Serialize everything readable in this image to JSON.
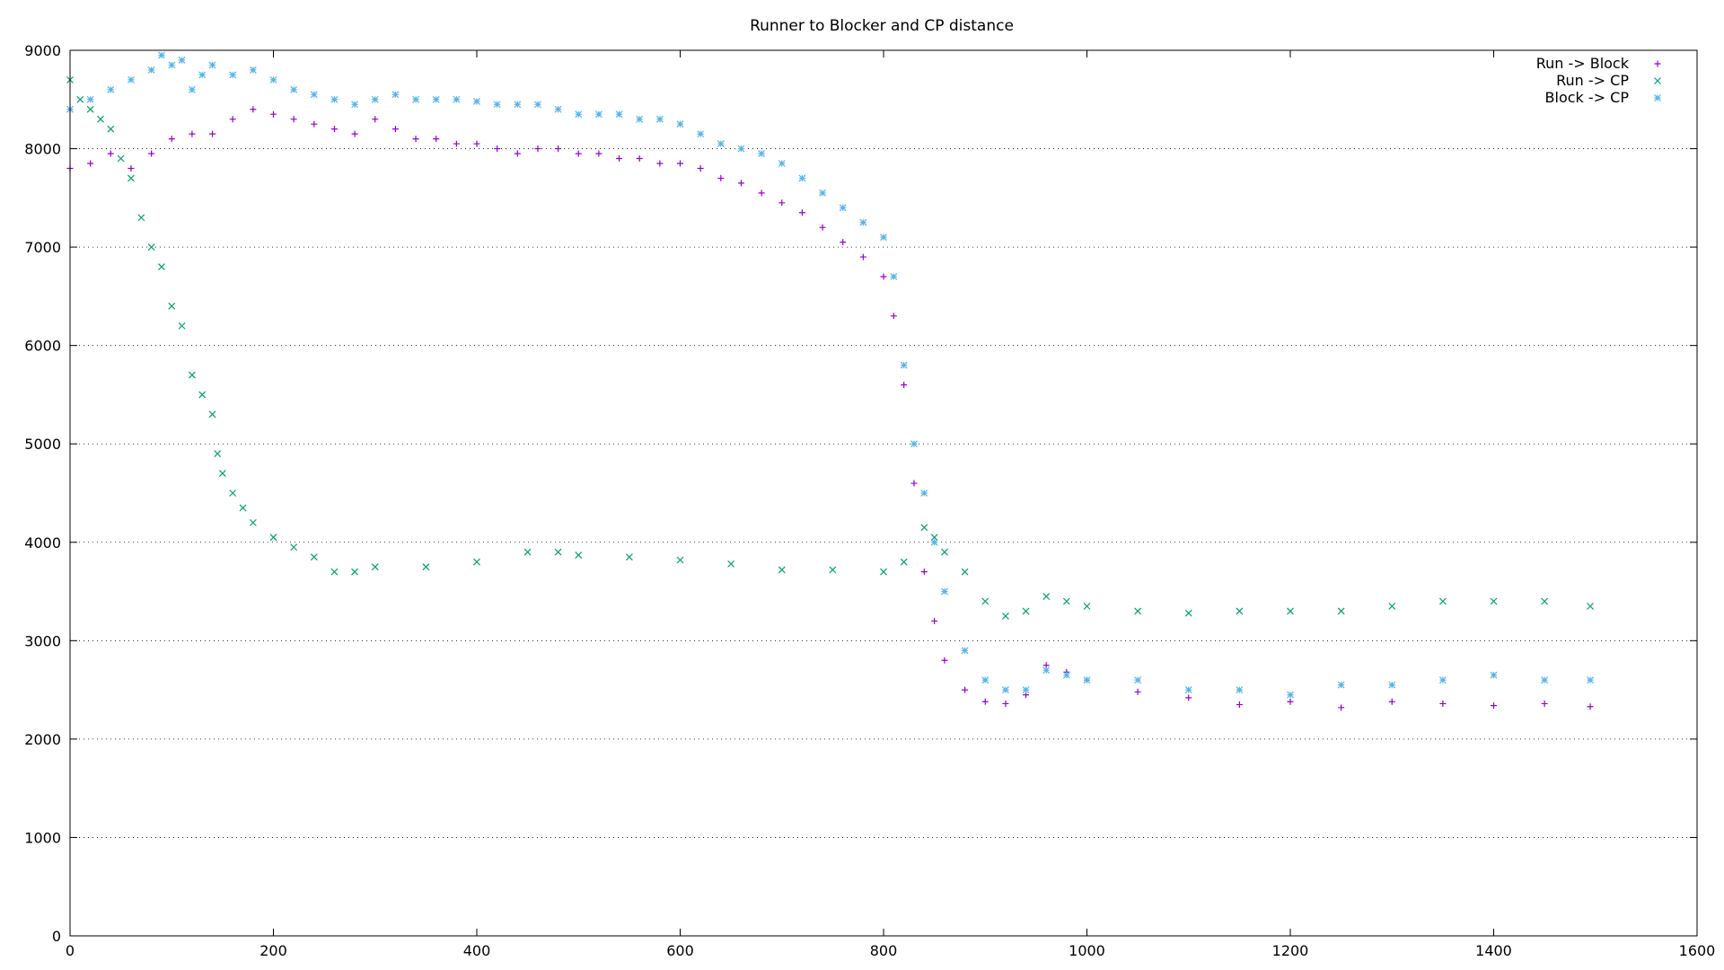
{
  "chart_data": {
    "type": "scatter",
    "title": "Runner to Blocker and CP distance",
    "xlabel": "",
    "ylabel": "",
    "xlim": [
      0,
      1600
    ],
    "ylim": [
      0,
      9000
    ],
    "xticks": [
      0,
      200,
      400,
      600,
      800,
      1000,
      1200,
      1400,
      1600
    ],
    "yticks": [
      0,
      1000,
      2000,
      3000,
      4000,
      5000,
      6000,
      7000,
      8000,
      9000
    ],
    "grid": "horizontal dotted",
    "legend_position": "top-right",
    "series": [
      {
        "name": "Run -> Block",
        "legend_label": "Run -> Block",
        "marker": "+",
        "color": "#9400d3",
        "x": [
          0,
          20,
          40,
          60,
          80,
          100,
          120,
          140,
          160,
          180,
          200,
          220,
          240,
          260,
          280,
          300,
          320,
          340,
          360,
          380,
          400,
          420,
          440,
          460,
          480,
          500,
          520,
          540,
          560,
          580,
          600,
          620,
          640,
          660,
          680,
          700,
          720,
          740,
          760,
          780,
          800,
          810,
          820,
          830,
          840,
          850,
          860,
          880,
          900,
          920,
          940,
          960,
          980,
          1000,
          1050,
          1100,
          1150,
          1200,
          1250,
          1300,
          1350,
          1400,
          1450,
          1495
        ],
        "y": [
          7800,
          7850,
          7950,
          7800,
          7950,
          8100,
          8150,
          8150,
          8300,
          8400,
          8350,
          8300,
          8250,
          8200,
          8150,
          8300,
          8200,
          8100,
          8100,
          8050,
          8050,
          8000,
          7950,
          8000,
          8000,
          7950,
          7950,
          7900,
          7900,
          7850,
          7850,
          7800,
          7700,
          7650,
          7550,
          7450,
          7350,
          7200,
          7050,
          6900,
          6700,
          6300,
          5600,
          4600,
          3700,
          3200,
          2800,
          2500,
          2380,
          2360,
          2450,
          2750,
          2680,
          2600,
          2480,
          2420,
          2350,
          2380,
          2320,
          2380,
          2360,
          2340,
          2360,
          2330
        ]
      },
      {
        "name": "Run ->     CP",
        "legend_label": "Run ->     CP",
        "marker": "x",
        "color": "#009e73",
        "x": [
          0,
          10,
          20,
          30,
          40,
          50,
          60,
          70,
          80,
          90,
          100,
          110,
          120,
          130,
          140,
          145,
          150,
          160,
          170,
          180,
          200,
          220,
          240,
          260,
          280,
          300,
          350,
          400,
          450,
          480,
          500,
          550,
          600,
          650,
          700,
          750,
          800,
          820,
          840,
          850,
          860,
          880,
          900,
          920,
          940,
          960,
          980,
          1000,
          1050,
          1100,
          1150,
          1200,
          1250,
          1300,
          1350,
          1400,
          1450,
          1495
        ],
        "y": [
          8700,
          8500,
          8400,
          8300,
          8200,
          7900,
          7700,
          7300,
          7000,
          6800,
          6400,
          6200,
          5700,
          5500,
          5300,
          4900,
          4700,
          4500,
          4350,
          4200,
          4050,
          3950,
          3850,
          3700,
          3700,
          3750,
          3750,
          3800,
          3900,
          3900,
          3870,
          3850,
          3820,
          3780,
          3720,
          3720,
          3700,
          3800,
          4150,
          4050,
          3900,
          3700,
          3400,
          3250,
          3300,
          3450,
          3400,
          3350,
          3300,
          3280,
          3300,
          3300,
          3300,
          3350,
          3400,
          3400,
          3400,
          3350
        ]
      },
      {
        "name": "Block ->     CP",
        "legend_label": "Block ->     CP",
        "marker": "*",
        "color": "#56b4e9",
        "x": [
          0,
          20,
          40,
          60,
          80,
          90,
          100,
          110,
          120,
          130,
          140,
          160,
          180,
          200,
          220,
          240,
          260,
          280,
          300,
          320,
          340,
          360,
          380,
          400,
          420,
          440,
          460,
          480,
          500,
          520,
          540,
          560,
          580,
          600,
          620,
          640,
          660,
          680,
          700,
          720,
          740,
          760,
          780,
          800,
          810,
          820,
          830,
          840,
          850,
          860,
          880,
          900,
          920,
          940,
          960,
          980,
          1000,
          1050,
          1100,
          1150,
          1200,
          1250,
          1300,
          1350,
          1400,
          1450,
          1495
        ],
        "y": [
          8400,
          8500,
          8600,
          8700,
          8800,
          8950,
          8850,
          8900,
          8600,
          8750,
          8850,
          8750,
          8800,
          8700,
          8600,
          8550,
          8500,
          8450,
          8500,
          8550,
          8500,
          8500,
          8500,
          8480,
          8450,
          8450,
          8450,
          8400,
          8350,
          8350,
          8350,
          8300,
          8300,
          8250,
          8150,
          8050,
          8000,
          7950,
          7850,
          7700,
          7550,
          7400,
          7250,
          7100,
          6700,
          5800,
          5000,
          4500,
          4000,
          3500,
          2900,
          2600,
          2500,
          2500,
          2700,
          2650,
          2600,
          2600,
          2500,
          2500,
          2450,
          2550,
          2550,
          2600,
          2650,
          2600,
          2600
        ]
      }
    ]
  }
}
